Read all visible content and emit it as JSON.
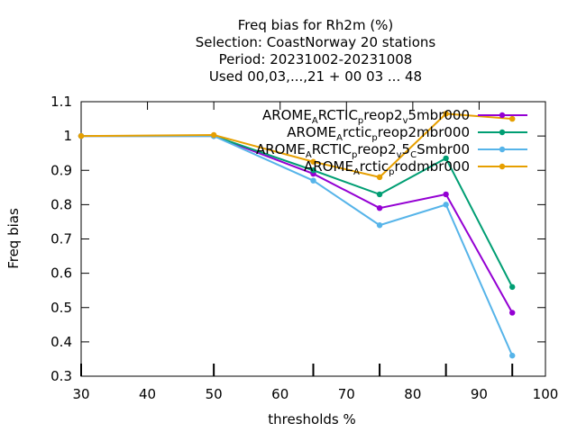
{
  "chart_data": {
    "type": "line",
    "title_lines": [
      "Freq bias  for Rh2m (%)",
      "Selection: CoastNorway     20 stations",
      "Period: 20231002-20231008",
      "Used  00,03,...,21  + 00 03 ... 48"
    ],
    "xlabel": "thresholds %",
    "ylabel": "Freq bias",
    "xlim": [
      30,
      100
    ],
    "ylim": [
      0.3,
      1.1
    ],
    "xticks": [
      30,
      40,
      50,
      60,
      70,
      80,
      90,
      100
    ],
    "yticks": [
      0.3,
      0.4,
      0.5,
      0.6,
      0.7,
      0.8,
      0.9,
      1,
      1.1
    ],
    "ytick_labels": [
      "0.3",
      "0.4",
      "0.5",
      "0.6",
      "0.7",
      "0.8",
      "0.9",
      "1",
      "1.1"
    ],
    "bottom_marks": [
      30,
      50,
      65,
      75,
      85,
      95
    ],
    "grid": false,
    "legend_position": "top-right",
    "series": [
      {
        "name": "AROME_ARCTIC_preop2_v5mbr000",
        "legend_parts": [
          [
            "AROME",
            ""
          ],
          [
            "A",
            "sub"
          ],
          [
            "RCTIC",
            ""
          ],
          [
            "p",
            "sub"
          ],
          [
            "reop2",
            ""
          ],
          [
            "v",
            "sub"
          ],
          [
            "5mbr000",
            ""
          ]
        ],
        "color": "#9400d3",
        "x": [
          30,
          50,
          65,
          75,
          85,
          95
        ],
        "y": [
          1.0,
          1.0,
          0.89,
          0.79,
          0.83,
          0.485
        ]
      },
      {
        "name": "AROME_Arctic_preop2mbr000",
        "legend_parts": [
          [
            "AROME",
            ""
          ],
          [
            "A",
            "sub"
          ],
          [
            "rctic",
            ""
          ],
          [
            "p",
            "sub"
          ],
          [
            "reop2mbr000",
            ""
          ]
        ],
        "color": "#009e73",
        "x": [
          30,
          50,
          65,
          75,
          85,
          95
        ],
        "y": [
          1.0,
          1.0,
          0.9,
          0.83,
          0.935,
          0.56
        ]
      },
      {
        "name": "AROME_ARCTIC_preop2_v5_CSmbr00",
        "legend_parts": [
          [
            "AROME",
            ""
          ],
          [
            "A",
            "sub"
          ],
          [
            "RCTIC",
            ""
          ],
          [
            "p",
            "sub"
          ],
          [
            "reop2",
            ""
          ],
          [
            "v",
            "sub"
          ],
          [
            "5",
            ""
          ],
          [
            "C",
            "sub"
          ],
          [
            "Smbr00",
            ""
          ]
        ],
        "color": "#56b4e9",
        "x": [
          30,
          50,
          65,
          75,
          85,
          95
        ],
        "y": [
          1.0,
          1.0,
          0.87,
          0.74,
          0.8,
          0.36
        ]
      },
      {
        "name": "AROME_Arctic_prodmbr000",
        "legend_parts": [
          [
            "AROME",
            ""
          ],
          [
            "A",
            "sub"
          ],
          [
            "rctic",
            ""
          ],
          [
            "p",
            "sub"
          ],
          [
            "rodmbr000",
            ""
          ]
        ],
        "color": "#e69f00",
        "x": [
          30,
          50,
          65,
          75,
          85,
          95
        ],
        "y": [
          1.0,
          1.003,
          0.925,
          0.88,
          1.065,
          1.05
        ]
      }
    ]
  }
}
